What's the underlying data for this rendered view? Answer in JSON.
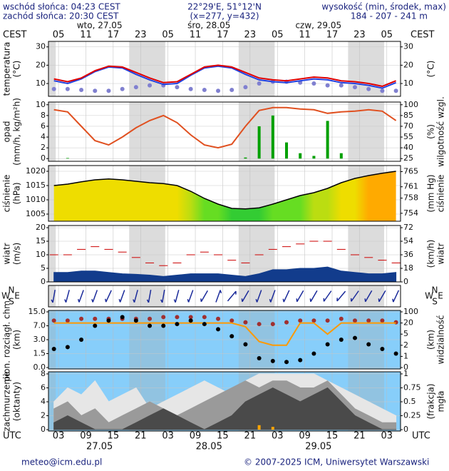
{
  "header": {
    "sunrise": "wschód słońca: 04:23 CEST",
    "sunset": "zachód słońca: 20:30 CEST",
    "coords": "22°29'E, 51°12'N",
    "grid": "(x=277, y=432)",
    "altitude_title": "wysokość (min, środek, max)",
    "altitude": "184 - 207 - 241 m"
  },
  "footer": {
    "email": "meteo@icm.edu.pl",
    "copyright": "© 2007-2025 ICM, Uniwersytet Warszawski"
  },
  "time": {
    "xlim": [
      0.8,
      78
    ],
    "x": [
      2,
      5,
      8,
      11,
      14,
      17,
      20,
      23,
      26,
      29,
      32,
      35,
      38,
      41,
      44,
      47,
      50,
      53,
      56,
      59,
      62,
      65,
      68,
      71,
      74,
      77
    ],
    "utc_label": "UTC",
    "cest_label": "CEST",
    "utc_ticks": [
      {
        "value": 3,
        "label": "03"
      },
      {
        "value": 9,
        "label": "09"
      },
      15,
      21,
      {
        "value": 27,
        "label": "03"
      },
      {
        "value": 33,
        "label": "09"
      },
      {
        "value": 39,
        "label": "15"
      },
      {
        "value": 45,
        "label": "21"
      },
      {
        "value": 51,
        "label": "03"
      },
      {
        "value": 57,
        "label": "09"
      },
      {
        "value": 63,
        "label": "15"
      },
      {
        "value": 69,
        "label": "21"
      },
      {
        "value": 75,
        "label": "03"
      }
    ],
    "cest_ticks": [
      {
        "value": 3,
        "label": "05"
      },
      {
        "value": 9,
        "label": "11"
      },
      {
        "value": 15,
        "label": "17"
      },
      {
        "value": 21,
        "label": "23"
      },
      {
        "value": 27,
        "label": "05"
      },
      {
        "value": 33,
        "label": "11"
      },
      {
        "value": 39,
        "label": "17"
      },
      {
        "value": 45,
        "label": "23"
      },
      {
        "value": 51,
        "label": "05"
      },
      {
        "value": 57,
        "label": "11"
      },
      {
        "value": 63,
        "label": "17"
      },
      {
        "value": 69,
        "label": "23"
      },
      {
        "value": 75,
        "label": "05"
      }
    ],
    "utc_dates": [
      {
        "value": 12,
        "label": "27.05"
      },
      {
        "value": 36,
        "label": "28.05"
      },
      {
        "value": 60,
        "label": "29.05"
      }
    ],
    "cest_dates": [
      {
        "value": 12,
        "label": "wto, 27.05"
      },
      {
        "value": 36,
        "label": "śro, 28.05"
      },
      {
        "value": 60,
        "label": "czw, 29.05"
      }
    ]
  },
  "chart_data": [
    {
      "type": "line",
      "y_label": [
        "temperatura",
        "(°C)"
      ],
      "y2_label": [
        "(°C)"
      ],
      "ylim": [
        3,
        33
      ],
      "yticks": [
        10,
        20,
        30
      ],
      "y2lim": [
        3,
        33
      ],
      "y2ticks": [
        10,
        20,
        30
      ],
      "series": [
        {
          "type": "dots",
          "color": "#8080d0",
          "values": [
            7,
            7,
            6.5,
            6,
            6,
            7,
            8,
            9,
            9,
            8,
            7,
            6.5,
            6,
            6.5,
            8,
            10,
            11,
            11,
            10.5,
            10,
            9,
            9,
            8,
            7,
            6,
            6
          ]
        },
        {
          "type": "line",
          "color": "#2040e0",
          "values": [
            11.5,
            10,
            12.5,
            16.5,
            19,
            18.5,
            15,
            12,
            9.5,
            10,
            14.5,
            18.5,
            19.5,
            18.5,
            15,
            12,
            11,
            10.5,
            11.5,
            12.5,
            12,
            10.5,
            10,
            9,
            7.5,
            10.5
          ]
        },
        {
          "type": "line",
          "color": "#e00000",
          "values": [
            12.5,
            11,
            13,
            17,
            19.5,
            19,
            16,
            13,
            10.5,
            11,
            15,
            19,
            20,
            19,
            16,
            13,
            12,
            11.5,
            12.5,
            13.5,
            13,
            11.5,
            11,
            10,
            8.5,
            11.5
          ]
        }
      ]
    },
    {
      "type": "line",
      "y_label": [
        "opad",
        "(mm/h, kg/m²h)"
      ],
      "y2_label": [
        "(%)",
        "wilgotność wzgl."
      ],
      "ylim": [
        -0.5,
        10.5
      ],
      "yticks": [
        0,
        2,
        4,
        6,
        8,
        10
      ],
      "y2lim": [
        21.25,
        103.75
      ],
      "y2ticks": [
        25,
        40,
        55,
        70,
        85,
        100
      ],
      "series": [
        {
          "type": "bars",
          "color": "#00a000",
          "values": [
            0,
            0.1,
            0,
            0,
            0,
            0,
            0,
            0,
            0,
            0,
            0,
            0,
            0,
            0,
            0.2,
            6,
            8,
            3,
            1,
            0.5,
            7,
            1,
            0,
            0,
            0,
            0
          ]
        },
        {
          "type": "line",
          "axis": "y2",
          "color": "#e05020",
          "values": [
            93,
            90,
            70,
            50,
            44,
            55,
            68,
            78,
            85,
            75,
            58,
            44,
            40,
            45,
            70,
            92,
            96,
            96,
            94,
            93,
            88,
            90,
            91,
            93,
            91,
            78
          ]
        }
      ]
    },
    {
      "type": "area",
      "y_label": [
        "ciśnienie",
        "(hPa)"
      ],
      "y2_label": [
        "(mm Hg)",
        "ciśnienie"
      ],
      "ylim": [
        1002.5,
        1022
      ],
      "yticks": [
        1005,
        1010,
        1015,
        1020
      ],
      "y2lim": [
        751.9,
        766.6
      ],
      "y2ticks": [
        754,
        758,
        761,
        765
      ],
      "series": [
        {
          "type": "pressure",
          "color": "#000000",
          "values": [
            1015,
            1015.5,
            1016.3,
            1017,
            1017.3,
            1017,
            1016.5,
            1016,
            1015.7,
            1015,
            1013,
            1010.5,
            1008.5,
            1007,
            1006.8,
            1007.2,
            1008.5,
            1010,
            1011.5,
            1012.5,
            1014,
            1016,
            1017.5,
            1018.5,
            1019.3,
            1020
          ]
        }
      ]
    },
    {
      "type": "area",
      "y_label": [
        "wiatr",
        "(m/s)"
      ],
      "y2_label": [
        "(km/h)",
        "wiatr"
      ],
      "ylim": [
        0,
        20.8
      ],
      "yticks": [
        0,
        5,
        10,
        15,
        20
      ],
      "y2lim": [
        0,
        74.9
      ],
      "y2ticks": [
        0,
        18,
        36,
        54,
        72
      ],
      "series": [
        {
          "type": "area",
          "color": "#123c8c",
          "values": [
            3.5,
            3.5,
            4,
            4,
            3.5,
            3,
            2.8,
            2.5,
            2,
            2.5,
            3,
            3,
            3,
            2.5,
            2,
            3,
            4.5,
            4.5,
            5,
            5,
            5.5,
            4,
            3.5,
            3,
            3,
            3.5
          ]
        },
        {
          "type": "dashes",
          "color": "#cc0000",
          "values": [
            10,
            10,
            12,
            13,
            12,
            11,
            9,
            7,
            6,
            7,
            10,
            11,
            10,
            8,
            7,
            10,
            12,
            13,
            14,
            15,
            15,
            12,
            10,
            9,
            8,
            7
          ]
        }
      ]
    },
    {
      "type": "arrows",
      "compass": [
        "W",
        "S",
        "N",
        "E"
      ],
      "series": [
        {
          "type": "arrows",
          "color": "#1a2a9a",
          "values": [
            10,
            15,
            20,
            20,
            25,
            20,
            15,
            10,
            10,
            15,
            20,
            30,
            200,
            220,
            30,
            20,
            20,
            25,
            30,
            30,
            35,
            40,
            35,
            30,
            30,
            25
          ]
        }
      ]
    },
    {
      "type": "scatter",
      "scale": "piecewise",
      "background": "#87cefa",
      "y_label": [
        "pion. rozciągł. chm.",
        "(km)"
      ],
      "y2_label": [
        "(km)",
        "widzialność"
      ],
      "ylim": [
        0,
        15
      ],
      "yticks": [
        {
          "value": 0,
          "label": "0.0"
        },
        1.5,
        {
          "value": 3,
          "label": "3.0"
        },
        {
          "value": 7,
          "label": "7.0"
        },
        {
          "value": 15,
          "label": "15.0"
        }
      ],
      "y2lim": [
        0,
        100
      ],
      "y2ticks": [
        0,
        1,
        2,
        5,
        20,
        100
      ],
      "series": [
        {
          "type": "dots",
          "color": "#a03030",
          "values": [
            10,
            10,
            11,
            11,
            11,
            11,
            11,
            11,
            12,
            12,
            12,
            12,
            11,
            10,
            9,
            8,
            8,
            9,
            10,
            10,
            10,
            11,
            10,
            10,
            10,
            9
          ]
        },
        {
          "type": "line",
          "axis": "y2",
          "color": "#ff9900",
          "values": [
            20,
            20,
            20,
            20,
            20,
            20,
            20,
            20,
            20,
            20,
            20,
            20,
            20,
            20,
            15,
            3,
            2,
            2,
            20,
            20,
            5,
            20,
            20,
            20,
            20,
            20
          ]
        },
        {
          "type": "dots",
          "color": "#000000",
          "values": [
            2,
            2.2,
            3,
            7,
            10,
            12,
            10,
            7,
            7,
            8,
            10,
            8,
            6,
            4,
            2.5,
            1,
            0.7,
            0.6,
            0.8,
            1.5,
            2.5,
            3,
            3.5,
            2.5,
            2,
            1.5
          ]
        }
      ]
    },
    {
      "type": "area",
      "background": "#87cefa",
      "y_label": [
        "zachmurzenie",
        "(oktanty)"
      ],
      "y2_label": [
        "(frakcja)",
        "mgła"
      ],
      "ylim": [
        -0.2,
        8.3
      ],
      "yticks": [
        0,
        2,
        4,
        6,
        8
      ],
      "y2lim": [
        -0.025,
        1.0375
      ],
      "y2ticks": [
        0,
        0.25,
        0.5,
        0.75,
        1
      ],
      "series": [
        {
          "type": "area",
          "color": "#e6e6e6",
          "values": [
            4,
            6,
            5,
            7,
            4,
            5,
            6,
            3,
            4,
            5,
            6,
            7,
            6,
            5,
            7,
            8,
            8,
            8,
            8,
            8,
            7,
            6,
            5,
            4,
            3,
            2
          ]
        },
        {
          "type": "area",
          "color": "#9a9a9a",
          "values": [
            3,
            4,
            2,
            3,
            1,
            2,
            3,
            4,
            3,
            2,
            3,
            4,
            5,
            6,
            7,
            6,
            7,
            7,
            6,
            6,
            7,
            5,
            3,
            2,
            1,
            1
          ]
        },
        {
          "type": "area",
          "color": "#4a4a4a",
          "values": [
            1,
            2,
            1,
            0,
            0,
            0,
            1,
            2,
            3,
            2,
            1,
            0,
            1,
            2,
            4,
            5,
            6,
            5,
            4,
            5,
            6,
            4,
            2,
            1,
            0,
            0
          ]
        },
        {
          "type": "bars",
          "axis": "y2",
          "color": "#ffa500",
          "values": [
            0,
            0,
            0,
            0,
            0,
            0,
            0,
            0,
            0,
            0,
            0,
            0,
            0,
            0,
            0,
            0.08,
            0.05,
            0,
            0,
            0,
            0,
            0,
            0,
            0,
            0,
            0
          ]
        }
      ]
    }
  ]
}
